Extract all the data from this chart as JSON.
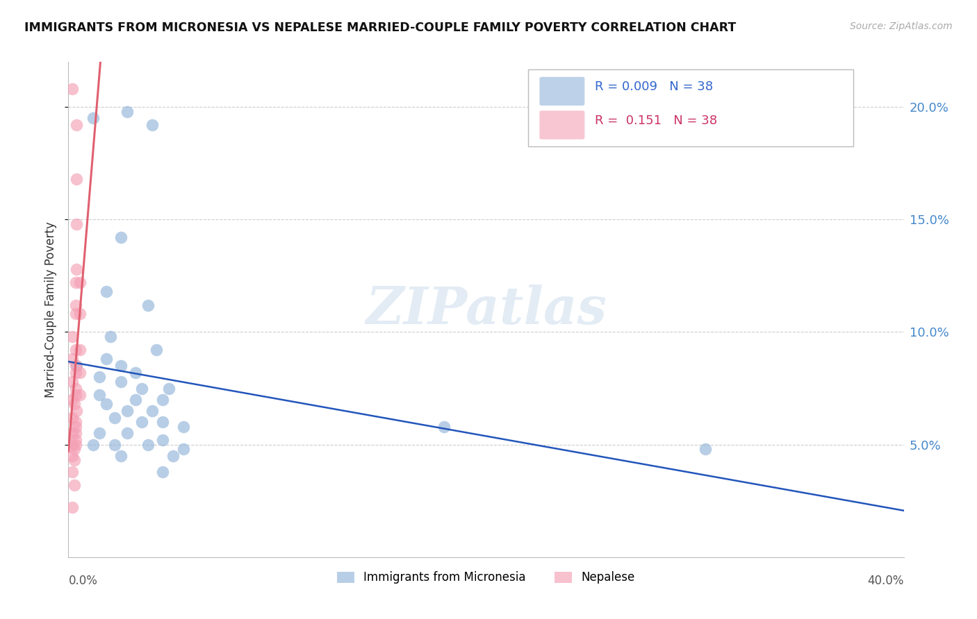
{
  "title": "IMMIGRANTS FROM MICRONESIA VS NEPALESE MARRIED-COUPLE FAMILY POVERTY CORRELATION CHART",
  "source": "Source: ZipAtlas.com",
  "ylabel": "Married-Couple Family Poverty",
  "xlim": [
    0.0,
    40.0
  ],
  "ylim": [
    0.0,
    22.0
  ],
  "yticks": [
    5.0,
    10.0,
    15.0,
    20.0
  ],
  "ytick_labels": [
    "5.0%",
    "10.0%",
    "15.0%",
    "20.0%"
  ],
  "blue_color": "#92B4D9",
  "pink_color": "#F4A0B5",
  "line_blue_color": "#2255BB",
  "line_pink_color": "#E06070",
  "blue_scatter_x": [
    0.4,
    1.2,
    2.8,
    4.0,
    2.5,
    1.8,
    3.8,
    2.0,
    4.2,
    1.8,
    2.5,
    3.2,
    1.5,
    2.5,
    3.5,
    4.8,
    1.5,
    3.2,
    4.5,
    1.8,
    2.8,
    4.0,
    2.2,
    3.5,
    4.5,
    5.5,
    1.5,
    2.8,
    4.5,
    1.2,
    2.2,
    3.8,
    5.5,
    2.5,
    5.0,
    18.0,
    30.5,
    4.5
  ],
  "blue_scatter_y": [
    8.5,
    19.5,
    19.8,
    19.2,
    14.2,
    11.8,
    11.2,
    9.8,
    9.2,
    8.8,
    8.5,
    8.2,
    8.0,
    7.8,
    7.5,
    7.5,
    7.2,
    7.0,
    7.0,
    6.8,
    6.5,
    6.5,
    6.2,
    6.0,
    6.0,
    5.8,
    5.5,
    5.5,
    5.2,
    5.0,
    5.0,
    5.0,
    4.8,
    4.5,
    4.5,
    5.8,
    4.8,
    3.8
  ],
  "pink_scatter_x": [
    0.2,
    0.4,
    0.4,
    0.4,
    0.4,
    0.35,
    0.55,
    0.35,
    0.35,
    0.55,
    0.2,
    0.35,
    0.55,
    0.2,
    0.35,
    0.35,
    0.55,
    0.2,
    0.35,
    0.35,
    0.55,
    0.2,
    0.28,
    0.38,
    0.2,
    0.35,
    0.35,
    0.2,
    0.35,
    0.35,
    0.2,
    0.35,
    0.28,
    0.2,
    0.28,
    0.2,
    0.28,
    0.2
  ],
  "pink_scatter_y": [
    20.8,
    19.2,
    16.8,
    14.8,
    12.8,
    12.2,
    12.2,
    11.2,
    10.8,
    10.8,
    9.8,
    9.2,
    9.2,
    8.8,
    8.5,
    8.2,
    8.2,
    7.8,
    7.5,
    7.2,
    7.2,
    7.0,
    6.8,
    6.5,
    6.2,
    6.0,
    5.8,
    5.5,
    5.5,
    5.2,
    5.0,
    5.0,
    4.8,
    4.5,
    4.3,
    3.8,
    3.2,
    2.2
  ],
  "watermark_text": "ZIPatlas",
  "legend_blue_r": "R = 0.009",
  "legend_blue_n": "N = 38",
  "legend_pink_r": "R =  0.151",
  "legend_pink_n": "N = 38"
}
